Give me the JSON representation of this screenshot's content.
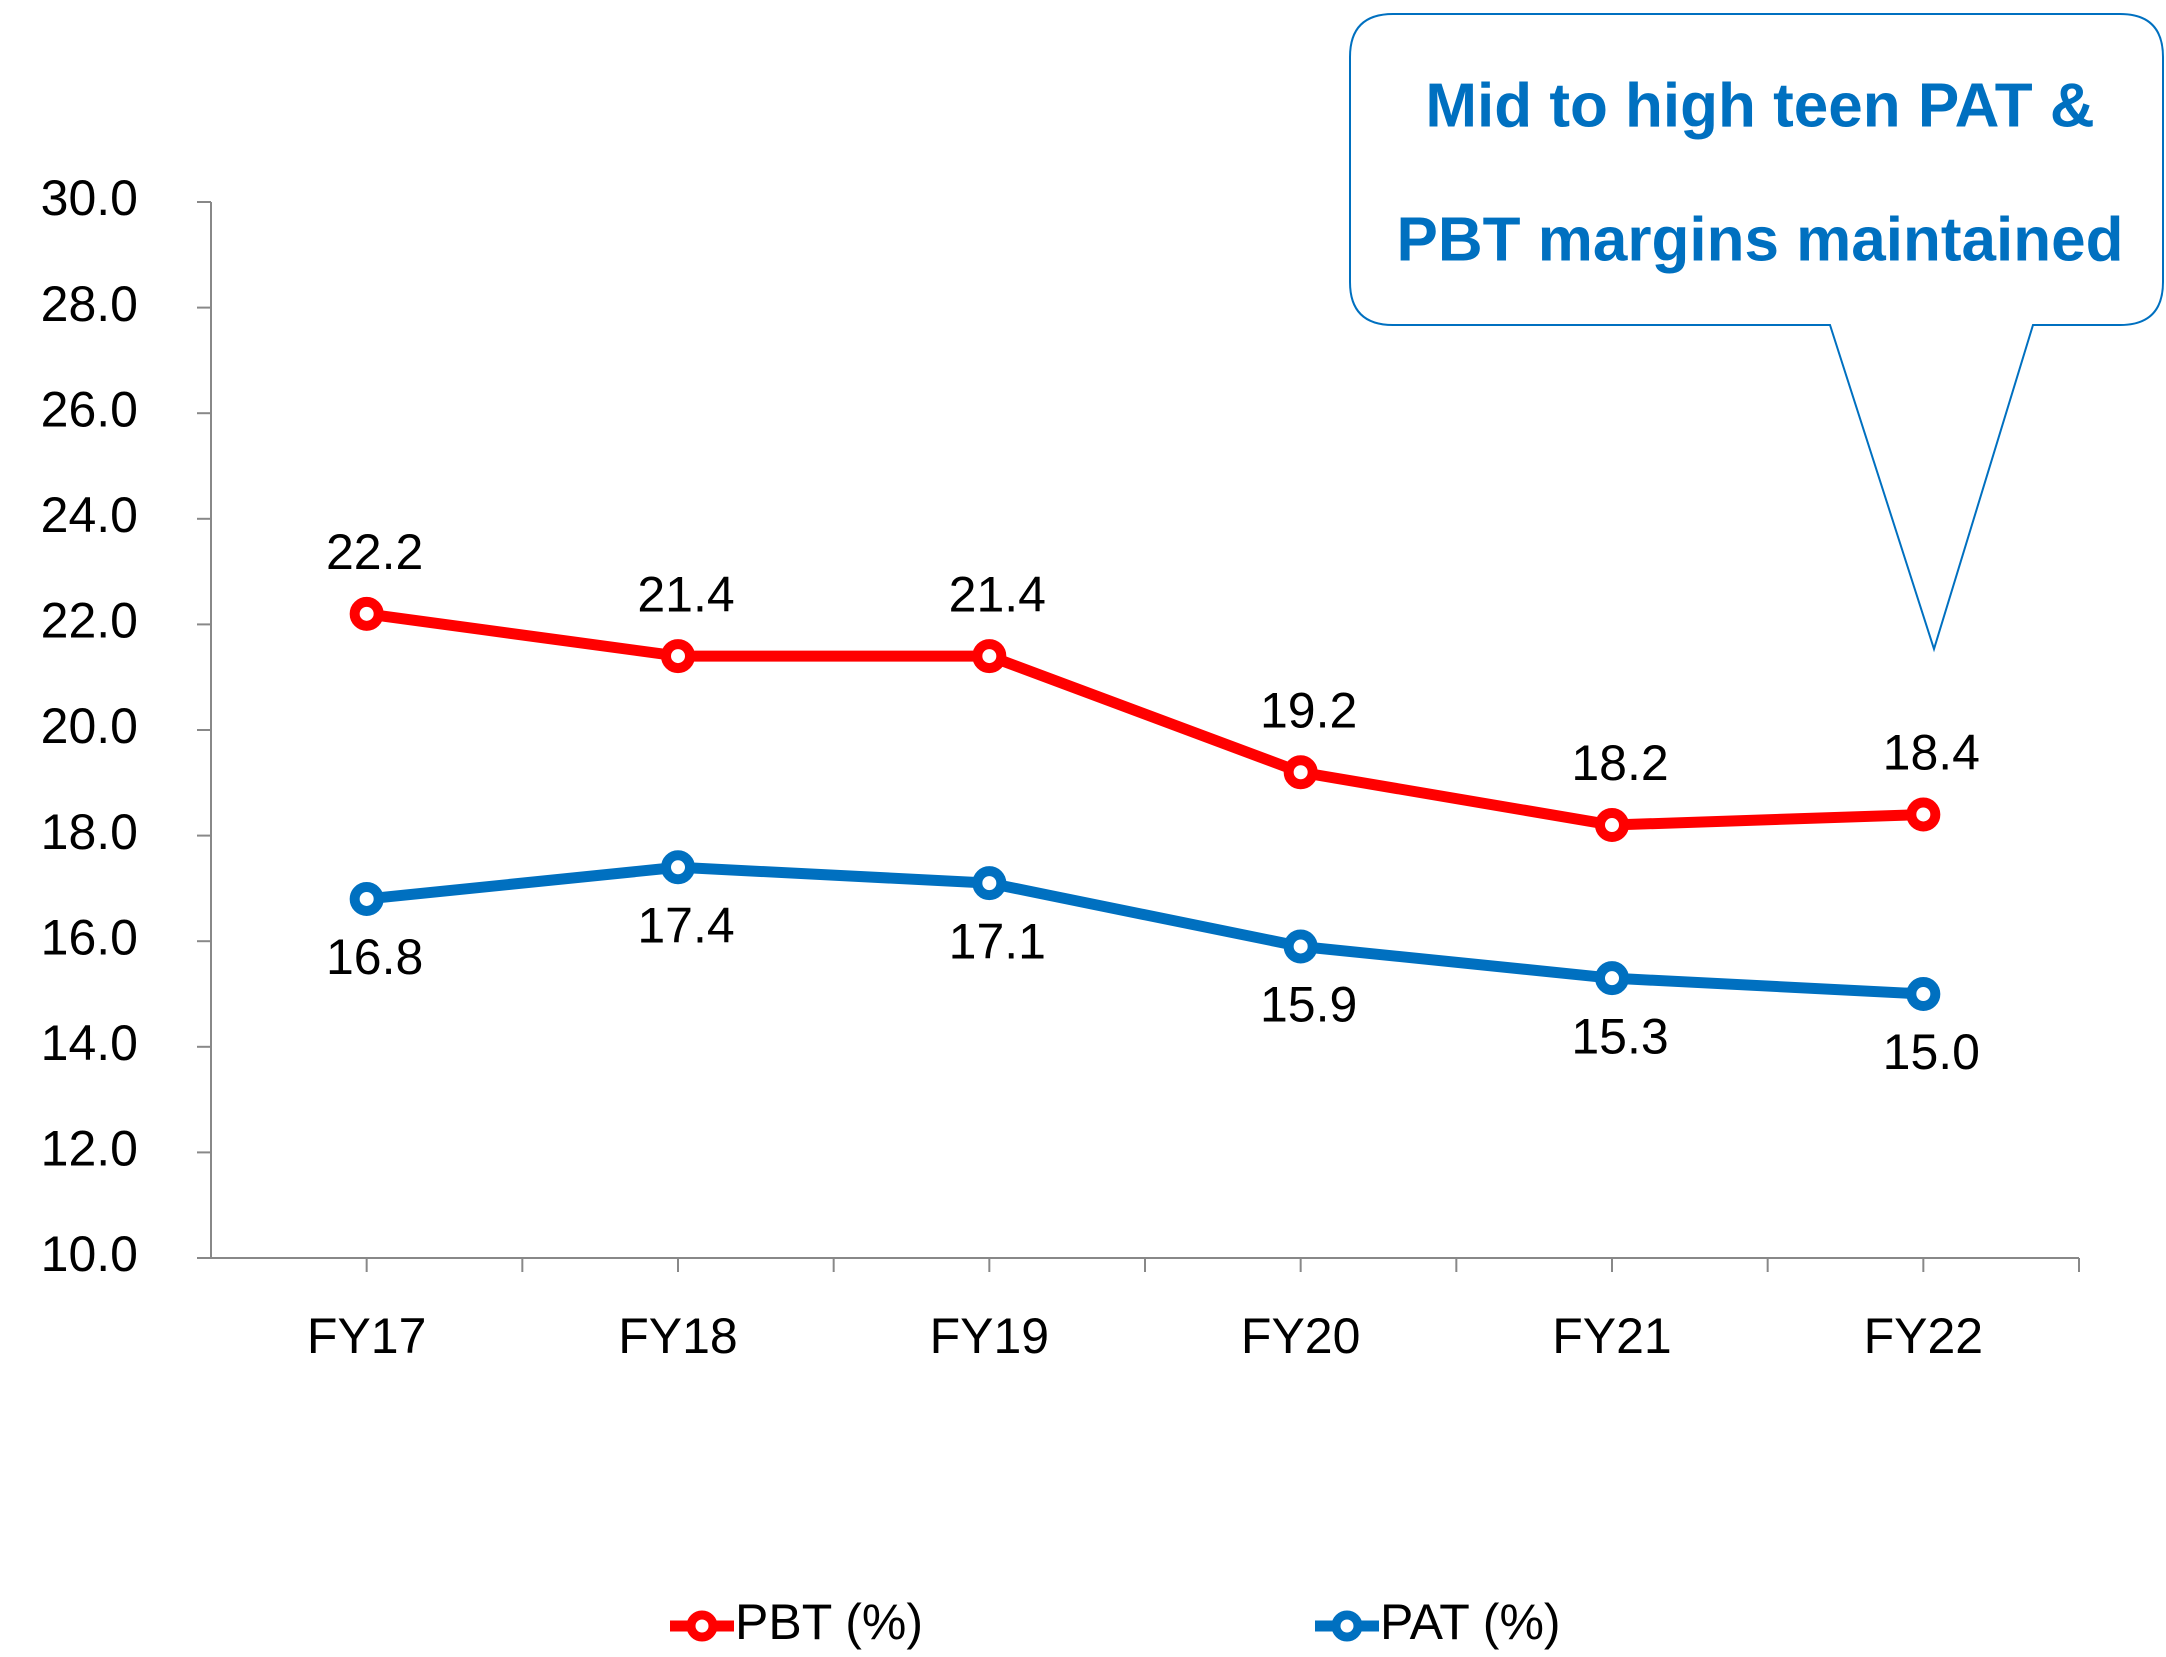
{
  "chart_data": {
    "type": "line",
    "categories": [
      "FY17",
      "FY18",
      "FY19",
      "FY20",
      "FY21",
      "FY22"
    ],
    "series": [
      {
        "name": "PBT (%)",
        "color": "#ff0000",
        "values": [
          22.2,
          21.4,
          21.4,
          19.2,
          18.2,
          18.4
        ],
        "value_labels": [
          "22.2",
          "21.4",
          "21.4",
          "19.2",
          "18.2",
          "18.4"
        ],
        "label_position": "above"
      },
      {
        "name": "PAT (%)",
        "color": "#0070c0",
        "values": [
          16.8,
          17.4,
          17.1,
          15.9,
          15.3,
          15.0
        ],
        "value_labels": [
          "16.8",
          "17.4",
          "17.1",
          "15.9",
          "15.3",
          "15.0"
        ],
        "label_position": "below"
      }
    ],
    "ylim": [
      10,
      30
    ],
    "yticks": [
      {
        "value": 10,
        "label": "10.0"
      },
      {
        "value": 12,
        "label": "12.0"
      },
      {
        "value": 14,
        "label": "14.0"
      },
      {
        "value": 16,
        "label": "16.0"
      },
      {
        "value": 18,
        "label": "18.0"
      },
      {
        "value": 20,
        "label": "20.0"
      },
      {
        "value": 22,
        "label": "22.0"
      },
      {
        "value": 24,
        "label": "24.0"
      },
      {
        "value": 26,
        "label": "26.0"
      },
      {
        "value": 28,
        "label": "28.0"
      },
      {
        "value": 30,
        "label": "30.0"
      }
    ],
    "annotation": [
      "Mid to high teen PAT &",
      "PBT margins maintained"
    ],
    "annotation_color": "#0070c0",
    "grid": false,
    "legend": "bottom"
  }
}
